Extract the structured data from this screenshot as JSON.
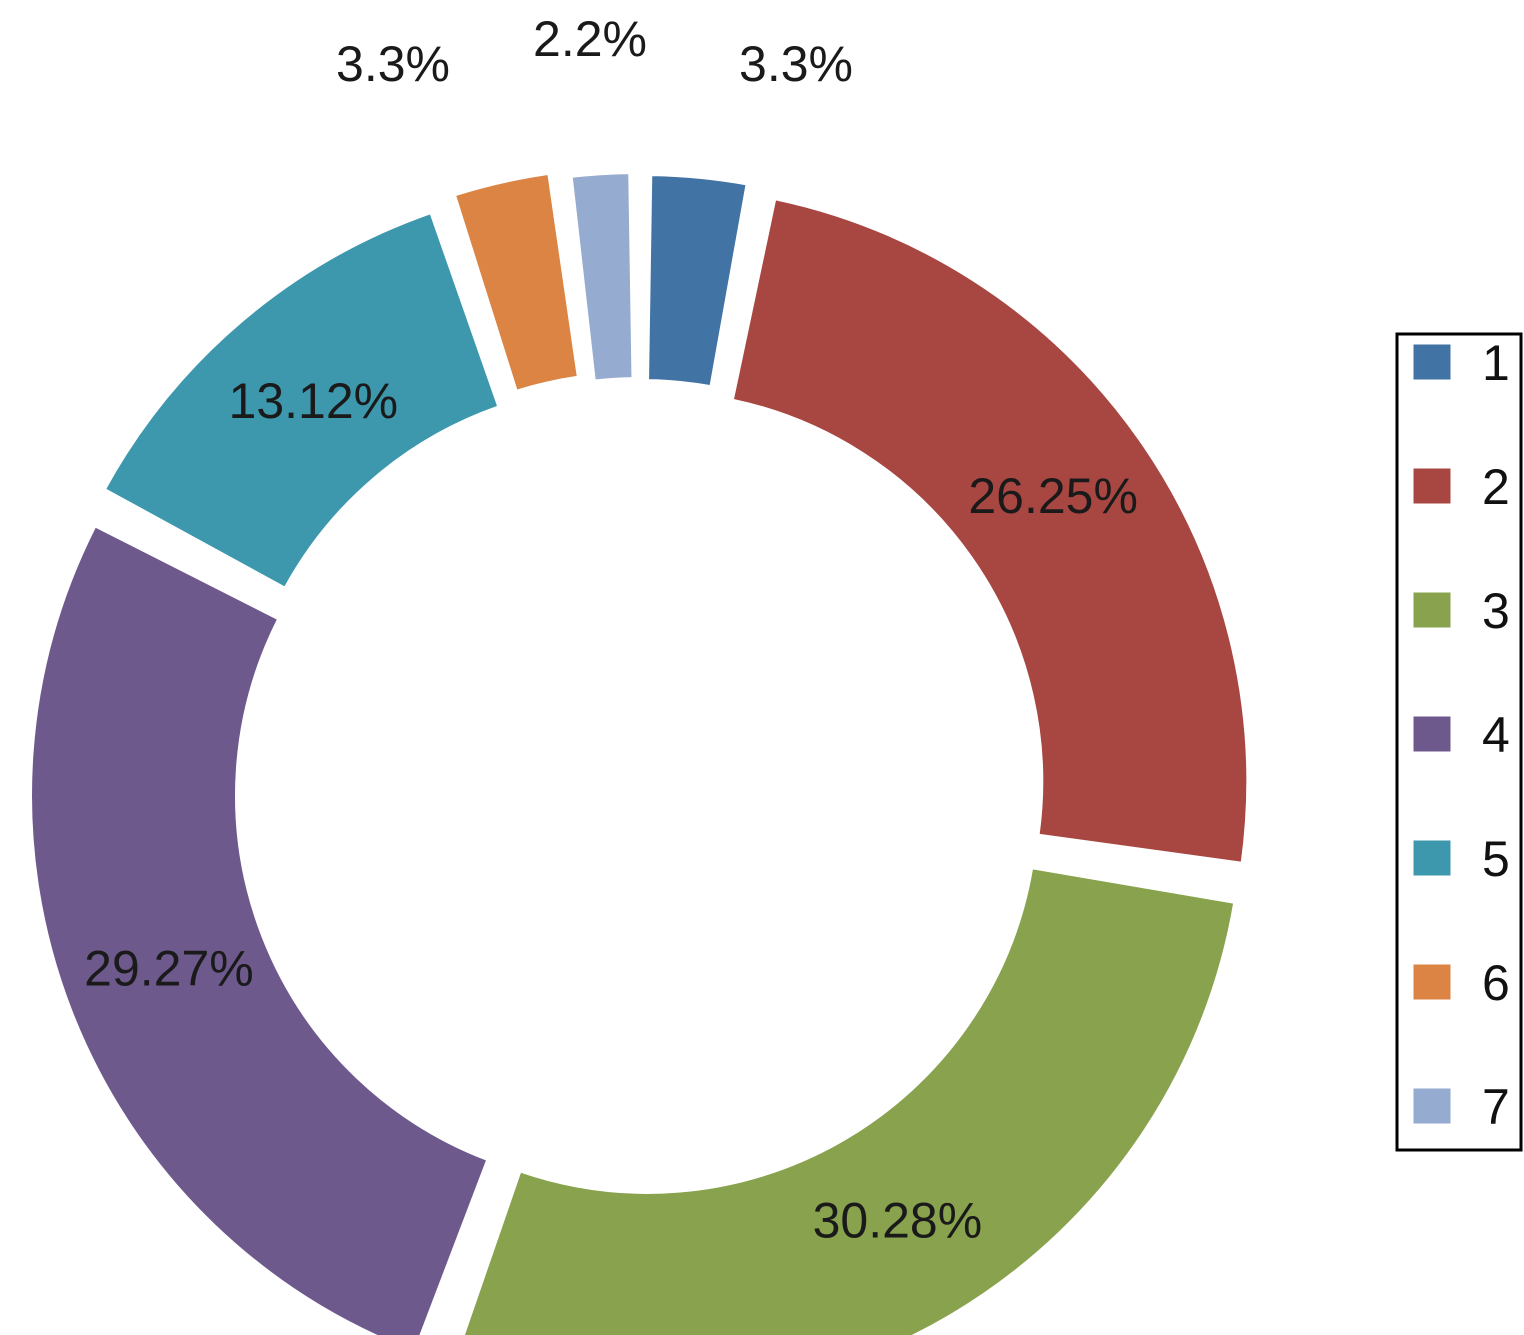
{
  "chart_data": {
    "type": "pie",
    "donut": true,
    "exploded": true,
    "start": "top, clockwise",
    "legend_position": "right",
    "series": [
      {
        "name": "1",
        "value": 3.3,
        "label": "3.3%",
        "color": "#4273a5"
      },
      {
        "name": "2",
        "value": 26.25,
        "label": "26.25%",
        "color": "#a84742"
      },
      {
        "name": "3",
        "value": 30.28,
        "label": "30.28%",
        "color": "#88a24d"
      },
      {
        "name": "4",
        "value": 29.27,
        "label": "29.27%",
        "color": "#6e598d"
      },
      {
        "name": "5",
        "value": 13.12,
        "label": "13.12%",
        "color": "#3d98ae"
      },
      {
        "name": "6",
        "value": 3.3,
        "label": "3.3%",
        "color": "#dc8443"
      },
      {
        "name": "7",
        "value": 2.2,
        "label": "2.2%",
        "color": "#95abcf"
      }
    ]
  }
}
